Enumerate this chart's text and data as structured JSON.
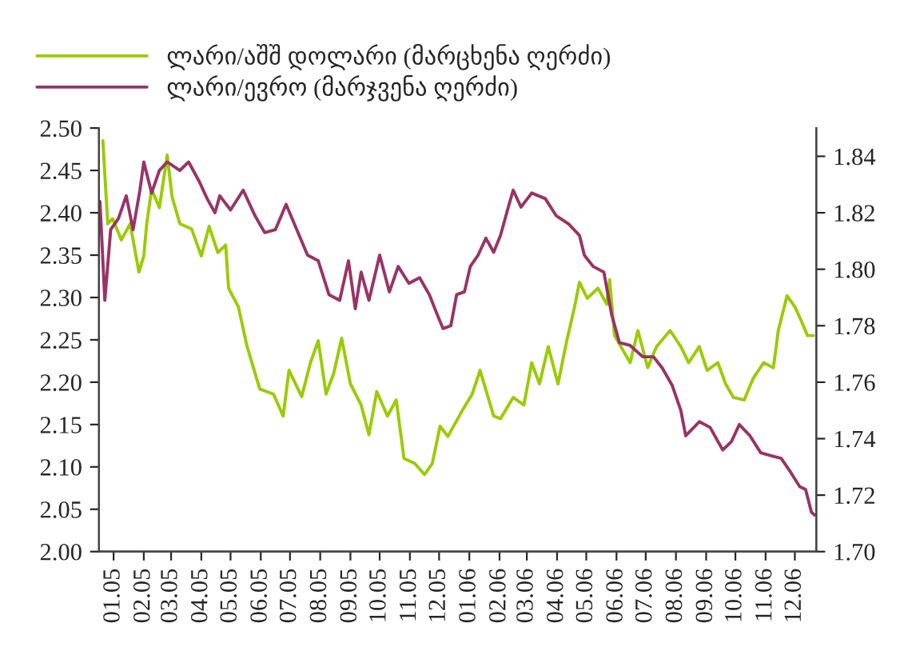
{
  "chart_data": {
    "type": "line",
    "legend": "top left",
    "grid": false,
    "xlim": [
      "2005-01-01",
      "2007-01-07"
    ],
    "xticks": [
      {
        "value": "2005-01-16",
        "label": "01.05"
      },
      {
        "value": "2005-02-16",
        "label": "02.05"
      },
      {
        "value": "2005-03-16",
        "label": "03.05"
      },
      {
        "value": "2005-04-16",
        "label": "04.05"
      },
      {
        "value": "2005-05-16",
        "label": "05.05"
      },
      {
        "value": "2005-06-16",
        "label": "06.05"
      },
      {
        "value": "2005-07-16",
        "label": "07.05"
      },
      {
        "value": "2005-08-16",
        "label": "08.05"
      },
      {
        "value": "2005-09-16",
        "label": "09.05"
      },
      {
        "value": "2005-10-16",
        "label": "10.05"
      },
      {
        "value": "2005-11-16",
        "label": "11.05"
      },
      {
        "value": "2005-12-16",
        "label": "12.05"
      },
      {
        "value": "2006-01-16",
        "label": "01.06"
      },
      {
        "value": "2006-02-16",
        "label": "02.06"
      },
      {
        "value": "2006-03-16",
        "label": "03.06"
      },
      {
        "value": "2006-04-16",
        "label": "04.06"
      },
      {
        "value": "2006-05-16",
        "label": "05.06"
      },
      {
        "value": "2006-06-16",
        "label": "06.06"
      },
      {
        "value": "2006-07-16",
        "label": "07.06"
      },
      {
        "value": "2006-08-16",
        "label": "08.06"
      },
      {
        "value": "2006-09-16",
        "label": "09.06"
      },
      {
        "value": "2006-10-16",
        "label": "10.06"
      },
      {
        "value": "2006-11-16",
        "label": "11.06"
      },
      {
        "value": "2006-12-16",
        "label": "12.06"
      }
    ],
    "ylim": [
      2.0,
      2.5
    ],
    "yticks": [
      {
        "value": 2.0,
        "label": "2.00"
      },
      {
        "value": 2.05,
        "label": "2.05"
      },
      {
        "value": 2.1,
        "label": "2.10"
      },
      {
        "value": 2.15,
        "label": "2.15"
      },
      {
        "value": 2.2,
        "label": "2.20"
      },
      {
        "value": 2.25,
        "label": "2.25"
      },
      {
        "value": 2.3,
        "label": "2.30"
      },
      {
        "value": 2.35,
        "label": "2.35"
      },
      {
        "value": 2.4,
        "label": "2.40"
      },
      {
        "value": 2.45,
        "label": "2.45"
      },
      {
        "value": 2.5,
        "label": "2.50"
      }
    ],
    "y2lim": [
      1.7,
      1.85
    ],
    "y2ticks": [
      {
        "value": 1.7,
        "label": "1.70"
      },
      {
        "value": 1.72,
        "label": "1.72"
      },
      {
        "value": 1.74,
        "label": "1.74"
      },
      {
        "value": 1.76,
        "label": "1.76"
      },
      {
        "value": 1.78,
        "label": "1.78"
      },
      {
        "value": 1.8,
        "label": "1.80"
      },
      {
        "value": 1.82,
        "label": "1.82"
      },
      {
        "value": 1.84,
        "label": "1.84"
      }
    ],
    "series": [
      {
        "name": "ლარი/აშშ დოლარი (მარცხენა ღერძი)",
        "color": "#99cc00",
        "x": [
          "2005-01-05",
          "2005-01-10",
          "2005-01-15",
          "2005-01-24",
          "2005-02-02",
          "2005-02-11",
          "2005-02-16",
          "2005-02-19",
          "2005-02-24",
          "2005-03-04",
          "2005-03-12",
          "2005-03-17",
          "2005-03-25",
          "2005-04-06",
          "2005-04-16",
          "2005-04-24",
          "2005-05-03",
          "2005-05-11",
          "2005-05-14",
          "2005-05-24",
          "2005-06-02",
          "2005-06-15",
          "2005-06-29",
          "2005-07-09",
          "2005-07-15",
          "2005-07-28",
          "2005-08-06",
          "2005-08-14",
          "2005-08-22",
          "2005-08-30",
          "2005-09-07",
          "2005-09-16",
          "2005-09-27",
          "2005-10-05",
          "2005-10-13",
          "2005-10-24",
          "2005-11-02",
          "2005-11-10",
          "2005-11-21",
          "2005-12-01",
          "2005-12-09",
          "2005-12-17",
          "2005-12-25",
          "2006-01-09",
          "2006-01-19",
          "2006-01-27",
          "2006-02-10",
          "2006-02-17",
          "2006-03-02",
          "2006-03-13",
          "2006-03-21",
          "2006-03-29",
          "2006-04-07",
          "2006-04-17",
          "2006-04-26",
          "2006-05-04",
          "2006-05-09",
          "2006-05-17",
          "2006-05-28",
          "2006-06-06",
          "2006-06-09",
          "2006-06-14",
          "2006-06-30",
          "2006-07-08",
          "2006-07-18",
          "2006-07-27",
          "2006-08-10",
          "2006-08-21",
          "2006-08-29",
          "2006-09-09",
          "2006-09-17",
          "2006-09-28",
          "2006-10-06",
          "2006-10-14",
          "2006-10-25",
          "2006-11-03",
          "2006-11-14",
          "2006-11-24",
          "2006-11-29",
          "2006-12-08",
          "2006-12-16",
          "2006-12-22",
          "2006-12-29",
          "2007-01-04"
        ],
        "values": [
          2.485,
          2.387,
          2.393,
          2.368,
          2.387,
          2.33,
          2.349,
          2.387,
          2.428,
          2.406,
          2.468,
          2.419,
          2.387,
          2.381,
          2.349,
          2.384,
          2.353,
          2.362,
          2.311,
          2.289,
          2.242,
          2.192,
          2.186,
          2.16,
          2.214,
          2.183,
          2.223,
          2.249,
          2.186,
          2.211,
          2.252,
          2.198,
          2.173,
          2.138,
          2.189,
          2.16,
          2.179,
          2.11,
          2.104,
          2.091,
          2.104,
          2.148,
          2.136,
          2.167,
          2.186,
          2.214,
          2.16,
          2.157,
          2.182,
          2.173,
          2.223,
          2.198,
          2.242,
          2.198,
          2.249,
          2.289,
          2.318,
          2.299,
          2.311,
          2.292,
          2.321,
          2.255,
          2.223,
          2.261,
          2.217,
          2.242,
          2.261,
          2.242,
          2.223,
          2.242,
          2.214,
          2.223,
          2.198,
          2.182,
          2.179,
          2.204,
          2.223,
          2.217,
          2.261,
          2.302,
          2.289,
          2.274,
          2.255,
          2.255
        ]
      },
      {
        "name": "ლარი/ევრო (მარჯვენა ღერძი)",
        "color": "#993366",
        "axis": "y2",
        "x": [
          "2005-01-02",
          "2005-01-07",
          "2005-01-13",
          "2005-01-21",
          "2005-01-29",
          "2005-02-05",
          "2005-02-12",
          "2005-02-16",
          "2005-02-24",
          "2005-03-04",
          "2005-03-12",
          "2005-03-25",
          "2005-04-03",
          "2005-04-14",
          "2005-04-22",
          "2005-04-30",
          "2005-05-05",
          "2005-05-16",
          "2005-05-29",
          "2005-06-10",
          "2005-06-20",
          "2005-07-01",
          "2005-07-12",
          "2005-07-23",
          "2005-08-03",
          "2005-08-14",
          "2005-08-25",
          "2005-09-05",
          "2005-09-14",
          "2005-09-21",
          "2005-09-27",
          "2005-10-05",
          "2005-10-16",
          "2005-10-26",
          "2005-11-04",
          "2005-11-15",
          "2005-11-26",
          "2005-12-06",
          "2005-12-14",
          "2005-12-20",
          "2005-12-28",
          "2006-01-03",
          "2006-01-11",
          "2006-01-17",
          "2006-01-25",
          "2006-02-02",
          "2006-02-10",
          "2006-02-17",
          "2006-02-25",
          "2006-03-02",
          "2006-03-10",
          "2006-03-21",
          "2006-04-04",
          "2006-04-15",
          "2006-04-28",
          "2006-05-09",
          "2006-05-14",
          "2006-05-23",
          "2006-06-03",
          "2006-06-11",
          "2006-06-19",
          "2006-06-30",
          "2006-07-13",
          "2006-07-24",
          "2006-08-02",
          "2006-08-12",
          "2006-08-21",
          "2006-08-26",
          "2006-09-09",
          "2006-09-20",
          "2006-10-03",
          "2006-10-12",
          "2006-10-20",
          "2006-10-31",
          "2006-11-11",
          "2006-11-21",
          "2006-12-02",
          "2006-12-10",
          "2006-12-21",
          "2006-12-27",
          "2007-01-02",
          "2007-01-05"
        ],
        "values": [
          1.824,
          1.789,
          1.814,
          1.818,
          1.826,
          1.814,
          1.828,
          1.838,
          1.827,
          1.835,
          1.838,
          1.835,
          1.838,
          1.831,
          1.825,
          1.82,
          1.826,
          1.821,
          1.828,
          1.819,
          1.813,
          1.814,
          1.823,
          1.814,
          1.805,
          1.803,
          1.791,
          1.789,
          1.803,
          1.786,
          1.799,
          1.789,
          1.805,
          1.792,
          1.801,
          1.795,
          1.797,
          1.791,
          1.784,
          1.779,
          1.78,
          1.791,
          1.792,
          1.801,
          1.805,
          1.811,
          1.806,
          1.812,
          1.822,
          1.828,
          1.822,
          1.827,
          1.825,
          1.819,
          1.816,
          1.812,
          1.805,
          1.801,
          1.799,
          1.784,
          1.774,
          1.773,
          1.769,
          1.769,
          1.765,
          1.759,
          1.75,
          1.741,
          1.746,
          1.744,
          1.736,
          1.739,
          1.745,
          1.741,
          1.735,
          1.734,
          1.733,
          1.729,
          1.723,
          1.722,
          1.714,
          1.713
        ]
      }
    ]
  }
}
